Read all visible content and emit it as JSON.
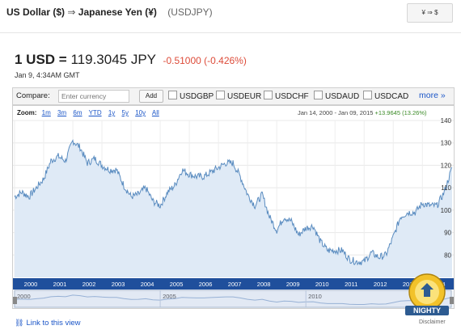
{
  "header": {
    "from": "US Dollar ($)",
    "arrow": "⇒",
    "to": "Japanese Yen (¥)",
    "symbol": "(USDJPY)",
    "swap_label": "¥ ⇒ $"
  },
  "quote": {
    "base": "1 USD =",
    "value": "119.3045 JPY",
    "change": "-0.51000 (-0.426%)",
    "timestamp": "Jan 9, 4:34AM GMT"
  },
  "compare": {
    "label": "Compare:",
    "placeholder": "Enter currency",
    "add_label": "Add",
    "options": [
      "USDGBP",
      "USDEUR",
      "USDCHF",
      "USDAUD",
      "USDCAD"
    ],
    "more_label": "more »"
  },
  "zoom": {
    "label": "Zoom:",
    "options": [
      "1m",
      "3m",
      "6m",
      "YTD",
      "1y",
      "5y",
      "10y",
      "All"
    ]
  },
  "range": {
    "dates": "Jan 14, 2000 - Jan 09, 2015",
    "change": "+13.9645 (13.26%)"
  },
  "footer": {
    "link_label": "Link to this view",
    "disclaimer": "Disclaimer"
  },
  "watermark": {
    "text": "NIGHTY"
  },
  "colors": {
    "line": "#5a8cc0",
    "fill": "#dfeaf6",
    "negative": "#dd4b39",
    "positive": "#3a8a26",
    "link": "#1a55c7"
  },
  "chart_data": {
    "type": "area",
    "ylim": [
      70,
      140
    ],
    "yticks": [
      80,
      90,
      100,
      110,
      120,
      130,
      140
    ],
    "x_ticks": [
      "2000",
      "2001",
      "2002",
      "2003",
      "2004",
      "2005",
      "2006",
      "2007",
      "2008",
      "2009",
      "2010",
      "2011",
      "2012",
      "2013",
      "2014"
    ],
    "nav_ticks": [
      "2000",
      "2005",
      "2010"
    ],
    "series": [
      {
        "x": [
          2000.0,
          2000.25,
          2000.5,
          2000.75,
          2001.0,
          2001.25,
          2001.5,
          2001.75,
          2002.0,
          2002.25,
          2002.5,
          2002.75,
          2003.0,
          2003.25,
          2003.5,
          2003.75,
          2004.0,
          2004.25,
          2004.5,
          2004.75,
          2005.0,
          2005.25,
          2005.5,
          2005.75,
          2006.0,
          2006.25,
          2006.5,
          2006.75,
          2007.0,
          2007.25,
          2007.5,
          2007.75,
          2008.0,
          2008.25,
          2008.5,
          2008.75,
          2009.0,
          2009.25,
          2009.5,
          2009.75,
          2010.0,
          2010.25,
          2010.5,
          2010.75,
          2011.0,
          2011.25,
          2011.5,
          2011.75,
          2012.0,
          2012.25,
          2012.5,
          2012.75,
          2013.0,
          2013.25,
          2013.5,
          2013.75,
          2014.0,
          2014.25,
          2014.5,
          2014.75,
          2015.02
        ],
        "y": [
          106,
          108,
          106,
          110,
          114,
          122,
          124,
          122,
          131,
          128,
          121,
          123,
          120,
          118,
          118,
          111,
          106,
          107,
          110,
          104,
          102,
          108,
          111,
          118,
          116,
          115,
          115,
          117,
          119,
          121,
          121,
          115,
          107,
          102,
          107,
          97,
          91,
          97,
          95,
          89,
          92,
          93,
          86,
          82,
          82,
          82,
          78,
          77,
          77,
          81,
          79,
          80,
          88,
          97,
          99,
          99,
          103,
          102,
          102,
          108,
          119
        ]
      }
    ]
  }
}
